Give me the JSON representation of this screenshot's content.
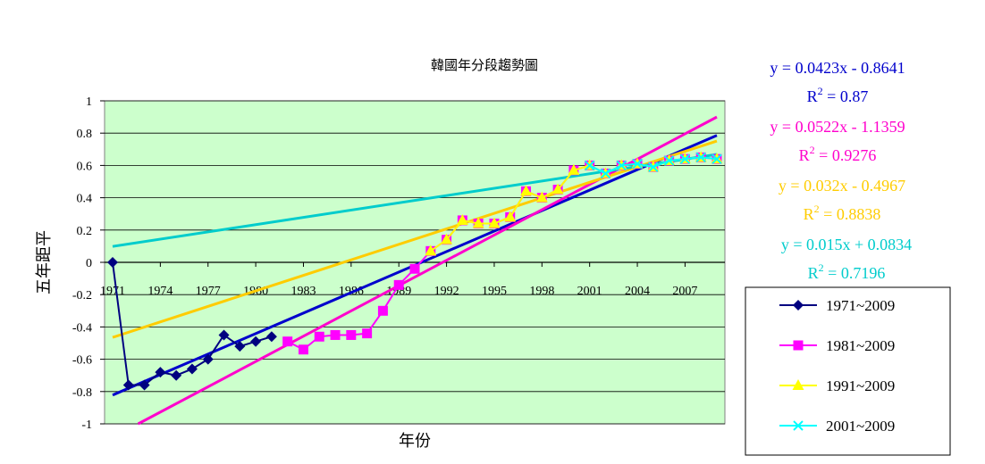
{
  "chart_data": {
    "type": "line",
    "title": "韓國年分段趨勢圖",
    "xlabel": "年份",
    "ylabel": "五年距平",
    "xlim": [
      1971,
      2009
    ],
    "ylim": [
      -1,
      1
    ],
    "yticks": [
      "1",
      "0.8",
      "0.6",
      "0.4",
      "0.2",
      "0",
      "-0.2",
      "-0.4",
      "-0.6",
      "-0.8",
      "-1"
    ],
    "xticks": [
      "1971",
      "1974",
      "1977",
      "1980",
      "1983",
      "1986",
      "1989",
      "1992",
      "1995",
      "1998",
      "2001",
      "2004",
      "2007"
    ],
    "plot_background": "#ccffcc",
    "grid": true,
    "legend_position": "right",
    "series": [
      {
        "name": "1971~2009",
        "color": "#000080",
        "marker": "diamond",
        "x": [
          1971,
          1972,
          1973,
          1974,
          1975,
          1976,
          1977,
          1978,
          1979,
          1980,
          1981
        ],
        "y": [
          0,
          -0.76,
          -0.76,
          -0.68,
          -0.7,
          -0.66,
          -0.6,
          -0.45,
          -0.52,
          -0.49,
          -0.46
        ]
      },
      {
        "name": "1981~2009",
        "color": "#ff00ff",
        "marker": "square",
        "x": [
          1982,
          1983,
          1984,
          1985,
          1986,
          1987,
          1988,
          1989,
          1990,
          1991,
          1992,
          1993,
          1994,
          1995,
          1996,
          1997,
          1998,
          1999,
          2000,
          2001,
          2002,
          2003,
          2004,
          2005,
          2006,
          2007,
          2008,
          2009
        ],
        "y": [
          -0.49,
          -0.54,
          -0.46,
          -0.45,
          -0.45,
          -0.44,
          -0.3,
          -0.14,
          -0.04,
          0.07,
          0.14,
          0.26,
          0.24,
          0.24,
          0.28,
          0.44,
          0.4,
          0.45,
          0.57,
          0.6,
          0.55,
          0.6,
          0.61,
          0.59,
          0.63,
          0.64,
          0.65,
          0.64
        ]
      },
      {
        "name": "1991~2009",
        "color": "#ffff00",
        "marker": "triangle",
        "x": [
          1991,
          1992,
          1993,
          1994,
          1995,
          1996,
          1997,
          1998,
          1999,
          2000,
          2001,
          2002,
          2003,
          2004,
          2005,
          2006,
          2007,
          2008,
          2009
        ],
        "y": [
          0.07,
          0.14,
          0.26,
          0.24,
          0.24,
          0.28,
          0.44,
          0.4,
          0.45,
          0.57,
          0.6,
          0.55,
          0.6,
          0.61,
          0.59,
          0.63,
          0.64,
          0.65,
          0.64
        ]
      },
      {
        "name": "2001~2009",
        "color": "#00ffff",
        "marker": "x",
        "x": [
          2001,
          2002,
          2003,
          2004,
          2005,
          2006,
          2007,
          2008,
          2009
        ],
        "y": [
          0.6,
          0.55,
          0.6,
          0.61,
          0.59,
          0.63,
          0.64,
          0.65,
          0.64
        ]
      }
    ],
    "trendlines": [
      {
        "color": "#0000cc",
        "x_from": 1971,
        "x_to": 2009,
        "slope": 0.0423,
        "intercept": -0.8641,
        "equation": "y = 0.0423x - 0.8641",
        "r2_label": "R",
        "r2_value": " = 0.87"
      },
      {
        "color": "#ff00cc",
        "x_from": 1971,
        "x_to": 2009,
        "slope": 0.0522,
        "intercept": -1.1359,
        "equation": "y = 0.0522x - 1.1359",
        "r2_label": "R",
        "r2_value": " = 0.9276"
      },
      {
        "color": "#ffcc00",
        "x_from": 1971,
        "x_to": 2009,
        "slope": 0.032,
        "intercept": -0.4967,
        "equation": "y = 0.032x - 0.4967",
        "r2_label": "R",
        "r2_value": " = 0.8838"
      },
      {
        "color": "#00cccc",
        "x_from": 1971,
        "x_to": 2009,
        "slope": 0.015,
        "intercept": 0.0834,
        "equation": "y = 0.015x + 0.0834",
        "r2_label": "R",
        "r2_value": " = 0.7196"
      }
    ]
  }
}
